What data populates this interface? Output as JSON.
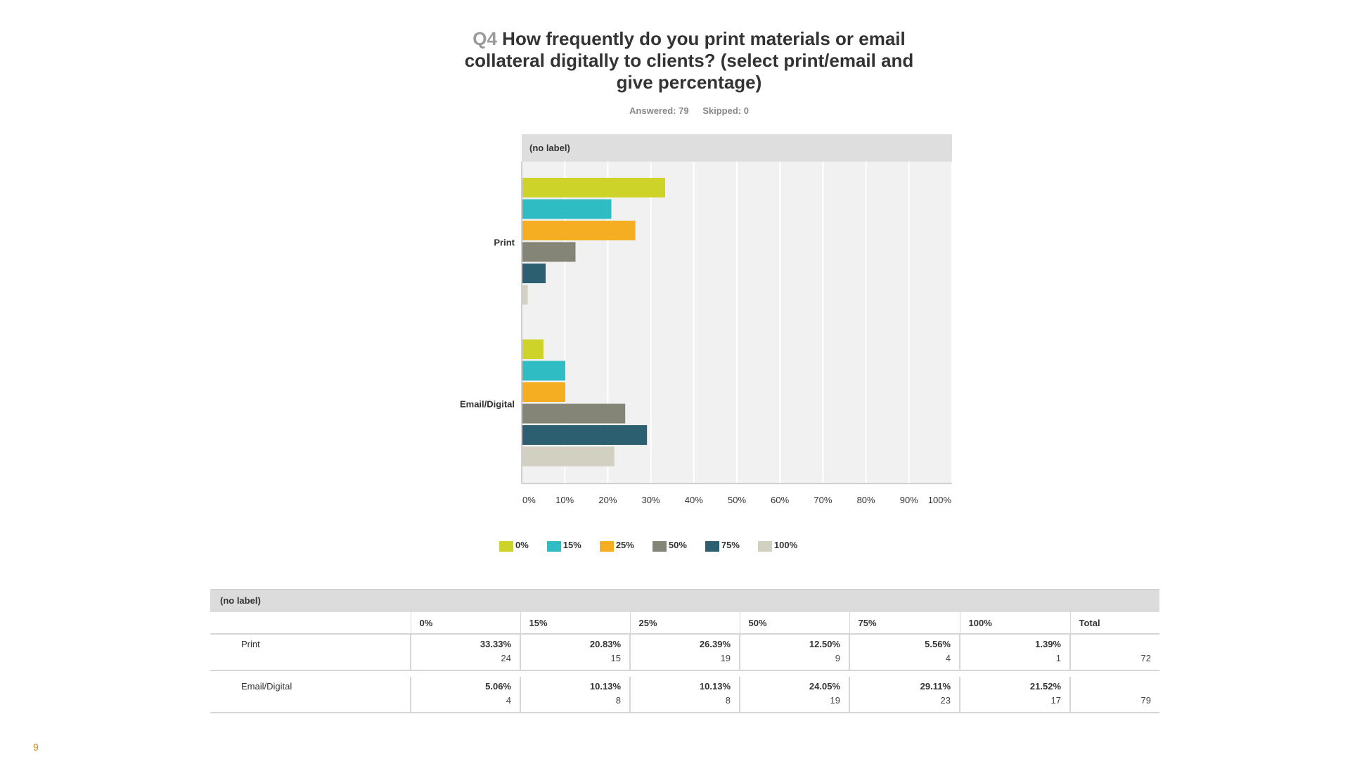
{
  "header": {
    "qnum": "Q4",
    "title": "How frequently do you print materials or email collateral digitally to clients? (select print/email and give percentage)",
    "answered": "Answered: 79",
    "skipped": "Skipped: 0"
  },
  "chart_data": {
    "type": "bar",
    "orientation": "horizontal",
    "panel_label": "(no label)",
    "categories": [
      "Print",
      "Email/Digital"
    ],
    "series": [
      {
        "name": "0%",
        "color": "#cdd329",
        "values": [
          33.33,
          5.06
        ]
      },
      {
        "name": "15%",
        "color": "#2fbcc2",
        "values": [
          20.83,
          10.13
        ]
      },
      {
        "name": "25%",
        "color": "#f5ad21",
        "values": [
          26.39,
          10.13
        ]
      },
      {
        "name": "50%",
        "color": "#858577",
        "values": [
          12.5,
          24.05
        ]
      },
      {
        "name": "75%",
        "color": "#2c5f70",
        "values": [
          5.56,
          29.11
        ]
      },
      {
        "name": "100%",
        "color": "#d2d0c1",
        "values": [
          1.39,
          21.52
        ]
      }
    ],
    "xticks": [
      "0%",
      "10%",
      "20%",
      "30%",
      "40%",
      "50%",
      "60%",
      "70%",
      "80%",
      "90%",
      "100%"
    ],
    "xlim": [
      0,
      100
    ],
    "grid": true,
    "legend_position": "bottom"
  },
  "table": {
    "caption": "(no label)",
    "headers": [
      "",
      "0%",
      "15%",
      "25%",
      "50%",
      "75%",
      "100%",
      "Total"
    ],
    "rows": [
      {
        "label": "Print",
        "cells": [
          {
            "pct": "33.33%",
            "count": "24"
          },
          {
            "pct": "20.83%",
            "count": "15"
          },
          {
            "pct": "26.39%",
            "count": "19"
          },
          {
            "pct": "12.50%",
            "count": "9"
          },
          {
            "pct": "5.56%",
            "count": "4"
          },
          {
            "pct": "1.39%",
            "count": "1"
          }
        ],
        "total": "72"
      },
      {
        "label": "Email/Digital",
        "cells": [
          {
            "pct": "5.06%",
            "count": "4"
          },
          {
            "pct": "10.13%",
            "count": "8"
          },
          {
            "pct": "10.13%",
            "count": "8"
          },
          {
            "pct": "24.05%",
            "count": "19"
          },
          {
            "pct": "29.11%",
            "count": "23"
          },
          {
            "pct": "21.52%",
            "count": "17"
          }
        ],
        "total": "79"
      }
    ]
  },
  "footer": {
    "page_number": "9"
  }
}
